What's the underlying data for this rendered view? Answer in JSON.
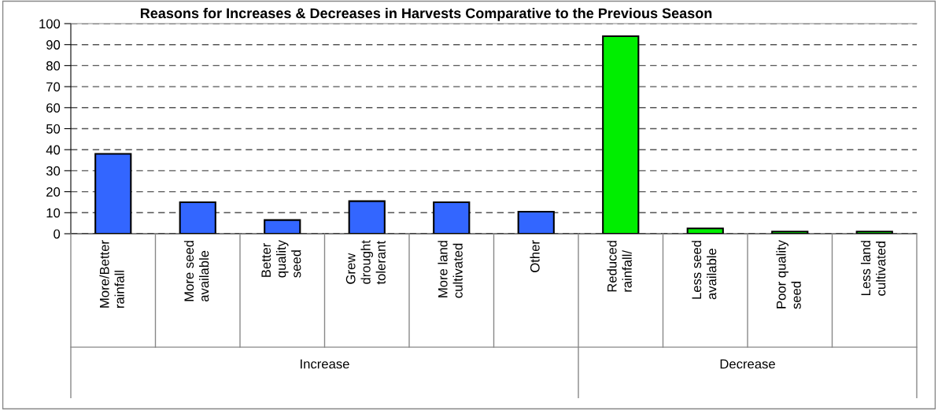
{
  "chart_data": {
    "type": "bar",
    "title": "Reasons for Increases & Decreases in Harvests Comparative to the Previous Season",
    "categories": [
      "More/Better\nrainfall",
      "More seed\navailable",
      "Better\nquality\nseed",
      "Grew\ndrought\ntolerant",
      "More land\ncultivated",
      "Other",
      "Reduced\nrainfall/",
      "Less seed\navailable",
      "Poor quality\nseed",
      "Less land\ncultivated"
    ],
    "values": [
      38,
      15,
      6.5,
      15.5,
      15,
      10.5,
      94,
      2.5,
      1,
      1
    ],
    "colors": [
      "#3366ff",
      "#3366ff",
      "#3366ff",
      "#3366ff",
      "#3366ff",
      "#3366ff",
      "#00ee00",
      "#00ee00",
      "#00ee00",
      "#00ee00"
    ],
    "ylim": [
      0,
      100
    ],
    "yticks": [
      0,
      10,
      20,
      30,
      40,
      50,
      60,
      70,
      80,
      90,
      100
    ],
    "grid": "y",
    "annotations": [
      "Increase",
      "Decrease"
    ]
  }
}
